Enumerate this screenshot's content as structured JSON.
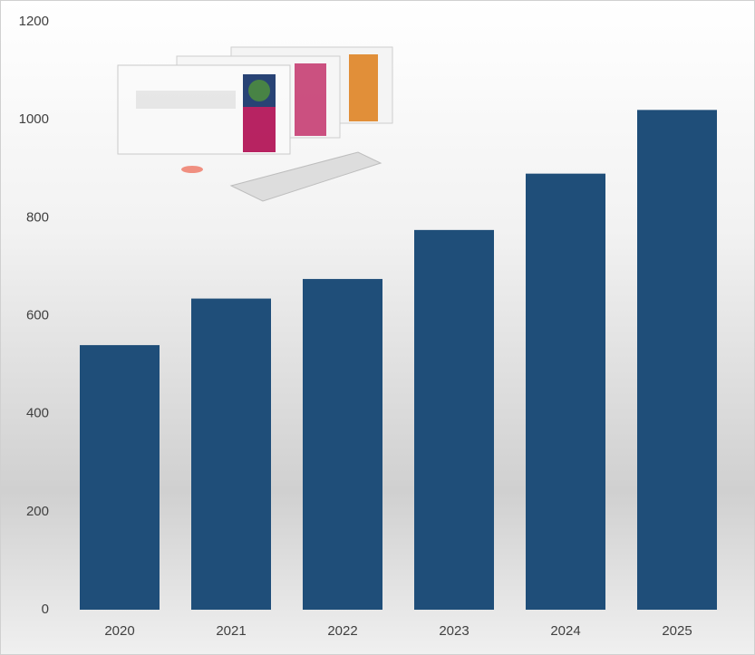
{
  "chart_data": {
    "type": "bar",
    "categories": [
      "2020",
      "2021",
      "2022",
      "2023",
      "2024",
      "2025"
    ],
    "values": [
      540,
      635,
      675,
      775,
      890,
      1020
    ],
    "color": "#1f4e79",
    "ylim": [
      0,
      1200
    ],
    "yticks": [
      0,
      200,
      400,
      600,
      800,
      1000,
      1200
    ],
    "grid": false
  }
}
